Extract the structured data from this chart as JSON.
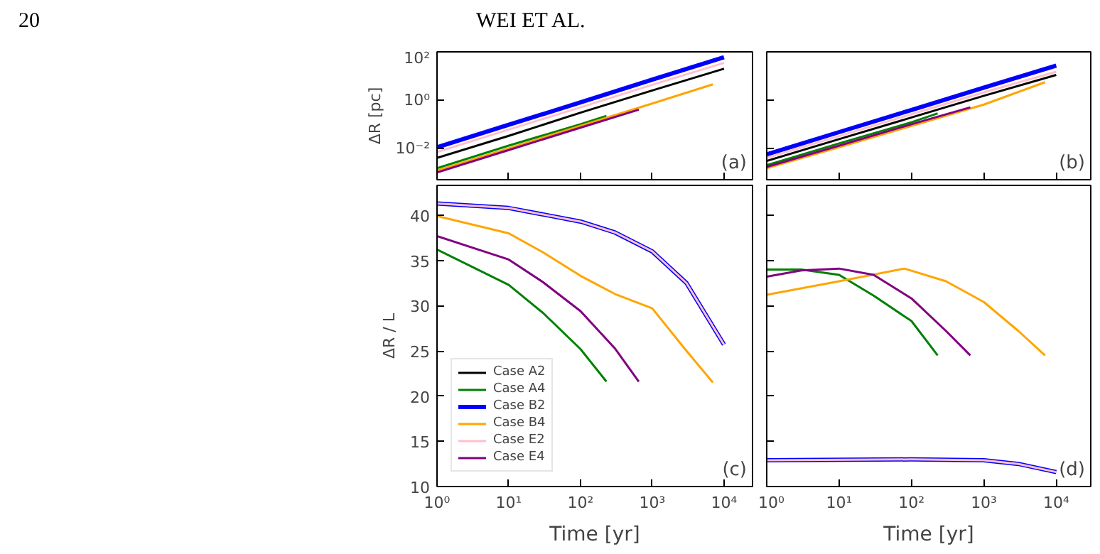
{
  "chart_data": [
    {
      "type": "line",
      "ylabel": "ΔR [pc]",
      "log": "xy",
      "xlim": [
        1,
        25000
      ],
      "ylim": [
        0.0005,
        100
      ],
      "xticks": [
        1,
        10,
        100,
        1000,
        10000
      ],
      "yticks": [
        {
          "value": 0.01,
          "label": "10⁻²"
        },
        {
          "value": 1,
          "label": "10⁰"
        },
        {
          "value": 100,
          "label": "10²"
        }
      ],
      "tick_labels": "y",
      "grid": false,
      "legend": false,
      "annotations": [
        "20",
        "WEI ET AL.",
        "(a)"
      ],
      "series": [
        {
          "color": "#000000",
          "x": [
            1,
            10,
            100,
            1000,
            10000
          ],
          "values": [
            0.004,
            0.033,
            0.3,
            2.5,
            20
          ]
        },
        {
          "color": "#008000",
          "x": [
            1,
            10,
            100,
            230
          ],
          "values": [
            0.0015,
            0.013,
            0.1,
            0.22
          ]
        },
        {
          "color": "#0000ff",
          "x": [
            1,
            10,
            100,
            1000,
            10000
          ],
          "values": [
            0.011,
            0.095,
            0.8,
            7,
            60
          ]
        },
        {
          "color": "#ffa500",
          "x": [
            1,
            10,
            100,
            1000,
            7000
          ],
          "values": [
            0.0012,
            0.01,
            0.085,
            0.72,
            4.5
          ]
        },
        {
          "color": "#ffc0cb",
          "x": [
            1,
            10,
            100,
            1000,
            10000
          ],
          "values": [
            0.007,
            0.06,
            0.5,
            4.3,
            35
          ]
        },
        {
          "color": "#800080",
          "x": [
            1,
            10,
            100,
            650
          ],
          "values": [
            0.001,
            0.0085,
            0.072,
            0.4
          ]
        }
      ]
    },
    {
      "type": "line",
      "log": "xy",
      "xlim": [
        1,
        30000
      ],
      "ylim": [
        0.0005,
        100
      ],
      "xticks": [
        1,
        10,
        100,
        1000,
        10000
      ],
      "yticks": [
        0.01,
        1,
        100
      ],
      "tick_labels": false,
      "grid": false,
      "legend": false,
      "annotations": [
        "(b)"
      ],
      "series": [
        {
          "color": "#000000",
          "x": [
            1,
            10,
            100,
            1000,
            10000
          ],
          "values": [
            0.003,
            0.024,
            0.19,
            1.5,
            11
          ]
        },
        {
          "color": "#008000",
          "x": [
            1,
            10,
            100,
            230
          ],
          "values": [
            0.002,
            0.016,
            0.12,
            0.28
          ]
        },
        {
          "color": "#0000ff",
          "x": [
            1,
            10,
            100,
            1000,
            10000
          ],
          "values": [
            0.0056,
            0.047,
            0.39,
            3.3,
            27
          ]
        },
        {
          "color": "#ffa500",
          "x": [
            1,
            10,
            100,
            1000,
            7000
          ],
          "values": [
            0.0015,
            0.011,
            0.085,
            0.65,
            5.5
          ]
        },
        {
          "color": "#ffc0cb",
          "x": [
            1,
            10,
            100,
            1000,
            10000
          ],
          "values": [
            0.004,
            0.032,
            0.26,
            2.1,
            15
          ]
        },
        {
          "color": "#800080",
          "x": [
            1,
            10,
            100,
            650
          ],
          "values": [
            0.0017,
            0.013,
            0.1,
            0.5
          ]
        }
      ]
    },
    {
      "type": "line",
      "xlabel": "Time [yr]",
      "ylabel": "ΔR / L",
      "log": "x",
      "xlim": [
        1,
        25000
      ],
      "ylim": [
        10,
        43.3
      ],
      "xticks": [
        {
          "value": 1,
          "label": "10⁰"
        },
        {
          "value": 10,
          "label": "10¹"
        },
        {
          "value": 100,
          "label": "10²"
        },
        {
          "value": 1000,
          "label": "10³"
        },
        {
          "value": 10000,
          "label": "10⁴"
        }
      ],
      "yticks": [
        10,
        15,
        20,
        25,
        30,
        35,
        40
      ],
      "grid": false,
      "legend": "bottom left",
      "annotations": [
        "(c)"
      ],
      "series": [
        {
          "name": "Case A2",
          "color": "#000000",
          "values": [
            null
          ]
        },
        {
          "name": "Case A4",
          "color": "#008000",
          "x": [
            1,
            10,
            30,
            100,
            230
          ],
          "values": [
            36.2,
            32.3,
            29.2,
            25.2,
            21.6
          ]
        },
        {
          "name": "Case B2",
          "color": "#0000ff",
          "x": [
            1,
            10,
            100,
            300,
            1000,
            3000,
            10000
          ],
          "values": [
            41.3,
            40.8,
            39.3,
            38.1,
            36,
            32.5,
            25.7
          ]
        },
        {
          "name": "Case B4",
          "color": "#ffa500",
          "x": [
            1,
            10,
            30,
            100,
            300,
            1000,
            3000,
            7000
          ],
          "values": [
            39.9,
            38,
            35.9,
            33.3,
            31.3,
            29.7,
            25,
            21.5
          ]
        },
        {
          "name": "Case E2",
          "color": "#ffc0cb",
          "x": [
            1,
            10,
            100,
            300,
            1000,
            3000,
            10000
          ],
          "values": [
            41.3,
            40.8,
            39.3,
            38.1,
            36,
            32.5,
            25.7
          ]
        },
        {
          "name": "Case E4",
          "color": "#800080",
          "x": [
            1,
            10,
            30,
            100,
            300,
            650
          ],
          "values": [
            37.7,
            35.1,
            32.6,
            29.4,
            25.3,
            21.6
          ]
        }
      ]
    },
    {
      "type": "line",
      "xlabel": "Time [yr]",
      "log": "x",
      "xlim": [
        1,
        30000
      ],
      "ylim": [
        10,
        43.3
      ],
      "xticks": [
        {
          "value": 1,
          "label": "10⁰"
        },
        {
          "value": 10,
          "label": "10¹"
        },
        {
          "value": 100,
          "label": "10²"
        },
        {
          "value": 1000,
          "label": "10³"
        },
        {
          "value": 10000,
          "label": "10⁴"
        }
      ],
      "yticks": [
        10,
        15,
        20,
        25,
        30,
        35,
        40
      ],
      "tick_labels": "x",
      "grid": false,
      "legend": false,
      "annotations": [
        "(d)"
      ],
      "series": [
        {
          "color": "#008000",
          "x": [
            1,
            3,
            10,
            30,
            100,
            230
          ],
          "values": [
            34.0,
            34.0,
            33.4,
            31.1,
            28.3,
            24.5
          ]
        },
        {
          "color": "#0000ff",
          "x": [
            1,
            100,
            1000,
            3000,
            10000
          ],
          "values": [
            12.9,
            13.0,
            12.9,
            12.5,
            11.6
          ]
        },
        {
          "color": "#ffa500",
          "x": [
            1,
            10,
            80,
            300,
            1000,
            3000,
            7000
          ],
          "values": [
            31.2,
            32.7,
            34.1,
            32.7,
            30.4,
            27.2,
            24.5
          ]
        },
        {
          "color": "#ffc0cb",
          "x": [
            1,
            100,
            1000,
            3000,
            10000
          ],
          "values": [
            12.9,
            13.0,
            12.9,
            12.5,
            11.6
          ]
        },
        {
          "color": "#800080",
          "x": [
            1,
            3,
            10,
            30,
            100,
            300,
            650
          ],
          "values": [
            33.2,
            33.9,
            34.1,
            33.4,
            30.8,
            27.2,
            24.5
          ]
        }
      ]
    }
  ]
}
